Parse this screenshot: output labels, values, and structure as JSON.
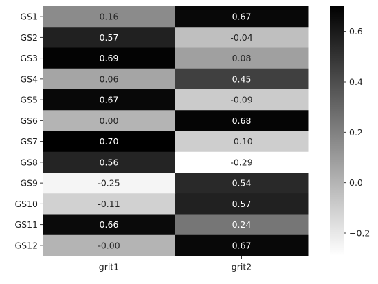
{
  "chart_data": {
    "type": "heatmap",
    "title": "",
    "xlabel": "",
    "ylabel": "",
    "x_categories": [
      "grit1",
      "grit2"
    ],
    "y_categories": [
      "GS1",
      "GS2",
      "GS3",
      "GS4",
      "GS5",
      "GS6",
      "GS7",
      "GS8",
      "GS9",
      "GS10",
      "GS11",
      "GS12"
    ],
    "values": [
      [
        0.16,
        0.67
      ],
      [
        0.57,
        -0.04
      ],
      [
        0.69,
        0.08
      ],
      [
        0.06,
        0.45
      ],
      [
        0.67,
        -0.09
      ],
      [
        0.0,
        0.68
      ],
      [
        0.7,
        -0.1
      ],
      [
        0.56,
        -0.29
      ],
      [
        -0.25,
        0.54
      ],
      [
        -0.11,
        0.57
      ],
      [
        0.66,
        0.24
      ],
      [
        -0.0,
        0.67
      ]
    ],
    "value_labels": [
      [
        "0.16",
        "0.67"
      ],
      [
        "0.57",
        "-0.04"
      ],
      [
        "0.69",
        "0.08"
      ],
      [
        "0.06",
        "0.45"
      ],
      [
        "0.67",
        "-0.09"
      ],
      [
        "0.00",
        "0.68"
      ],
      [
        "0.70",
        "-0.10"
      ],
      [
        "0.56",
        "-0.29"
      ],
      [
        "-0.25",
        "0.54"
      ],
      [
        "-0.11",
        "0.57"
      ],
      [
        "0.66",
        "0.24"
      ],
      [
        "-0.00",
        "0.67"
      ]
    ],
    "colormap": "Greys",
    "color_range": [
      -0.29,
      0.7
    ],
    "colorbar": {
      "ticks": [
        -0.2,
        0.0,
        0.2,
        0.4,
        0.6
      ],
      "tick_labels": [
        "−0.2",
        "0.0",
        "0.2",
        "0.4",
        "0.6"
      ],
      "placement": "right"
    }
  }
}
